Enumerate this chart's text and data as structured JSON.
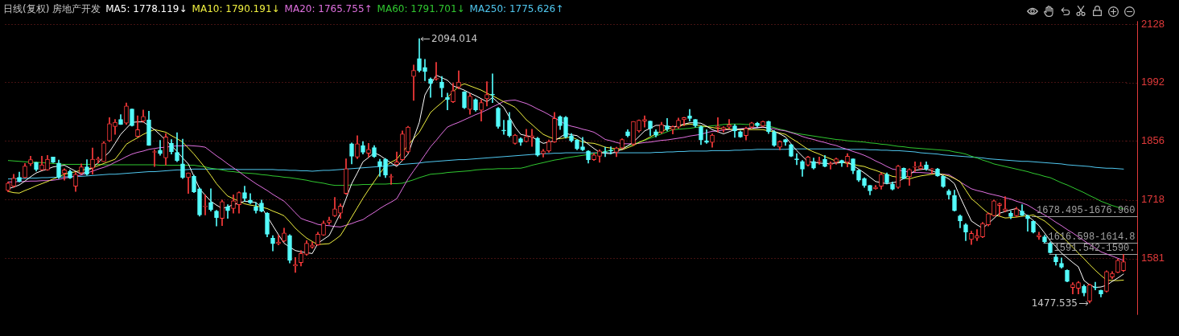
{
  "chart_data": {
    "type": "candlestick",
    "title": "日线(复权) 房地产开发",
    "categories": [
      null,
      null,
      null,
      null,
      null,
      null,
      null,
      null,
      null,
      null,
      null,
      null,
      null,
      null,
      null,
      null,
      null,
      null,
      null,
      null,
      null,
      null,
      null,
      null,
      null,
      null,
      null,
      null,
      null,
      null,
      null,
      null,
      null,
      null,
      null,
      null,
      null,
      null,
      null,
      null,
      null,
      null,
      null,
      null,
      null,
      null,
      null,
      null,
      null,
      null,
      null,
      null,
      null,
      null,
      null,
      null,
      null,
      null,
      null,
      null,
      null,
      null,
      null,
      null,
      null,
      null,
      null,
      null,
      null,
      null,
      null,
      null,
      null,
      null,
      null,
      null,
      null,
      null,
      null,
      null,
      null,
      null,
      null,
      null,
      null,
      null,
      null,
      null,
      null,
      null,
      null,
      null,
      null,
      null,
      null,
      null,
      null,
      null,
      null,
      null,
      null,
      null,
      null,
      null,
      null,
      null,
      null,
      null,
      null,
      null,
      null,
      null,
      null,
      null,
      null,
      null,
      null,
      null,
      null,
      null,
      null,
      null,
      null,
      null,
      null,
      null,
      null,
      null,
      null,
      null,
      null,
      null,
      null,
      null,
      null,
      null,
      null,
      null,
      null,
      null,
      null,
      null,
      null,
      null,
      null,
      null,
      null,
      null,
      null,
      null,
      null,
      null,
      null,
      null,
      null,
      null,
      null,
      null,
      null,
      null,
      null,
      null,
      null,
      null,
      null,
      null,
      null,
      null,
      null,
      null,
      null,
      null,
      null,
      null,
      null,
      null,
      null,
      null,
      null,
      null,
      null,
      null,
      null,
      null,
      null,
      null,
      null,
      null,
      null,
      null,
      null,
      null,
      null,
      null,
      null,
      null,
      null,
      null,
      null
    ],
    "ohlc": [
      [
        1740,
        1760,
        1737,
        1757
      ],
      [
        1750,
        1778,
        1747,
        1769
      ],
      [
        1771,
        1783,
        1760,
        1761
      ],
      [
        1770,
        1803,
        1769,
        1797
      ],
      [
        1802,
        1820,
        1798,
        1812
      ],
      [
        1806,
        1806,
        1785,
        1789
      ],
      [
        1788,
        1820,
        1787,
        1800
      ],
      [
        1788,
        1822,
        1787,
        1813
      ],
      [
        1818,
        1818,
        1805,
        1806
      ],
      [
        1804,
        1811,
        1768,
        1770
      ],
      [
        1780,
        1791,
        1764,
        1788
      ],
      [
        1785,
        1788,
        1768,
        1769
      ],
      [
        1750,
        1782,
        1738,
        1778
      ],
      [
        1781,
        1802,
        1778,
        1795
      ],
      [
        1795,
        1812,
        1776,
        1778
      ],
      [
        1792,
        1839,
        1778,
        1813
      ],
      [
        1812,
        1818,
        1804,
        1814
      ],
      [
        1807,
        1854,
        1807,
        1851
      ],
      [
        1856,
        1910,
        1854,
        1896
      ],
      [
        1889,
        1906,
        1871,
        1899
      ],
      [
        1906,
        1917,
        1894,
        1894
      ],
      [
        1897,
        1944,
        1894,
        1937
      ],
      [
        1930,
        1930,
        1890,
        1891
      ],
      [
        1866,
        1914,
        1865,
        1882
      ],
      [
        1902,
        1928,
        1899,
        1913
      ],
      [
        1905,
        1925,
        1845,
        1845
      ],
      [
        1829,
        1835,
        1796,
        1830
      ],
      [
        1834,
        1857,
        1822,
        1826
      ],
      [
        1816,
        1873,
        1799,
        1865
      ],
      [
        1850,
        1859,
        1825,
        1830
      ],
      [
        1829,
        1875,
        1807,
        1810
      ],
      [
        1802,
        1860,
        1768,
        1770
      ],
      [
        1770,
        1781,
        1733,
        1781
      ],
      [
        1773,
        1776,
        1735,
        1737
      ],
      [
        1744,
        1746,
        1680,
        1683
      ],
      [
        1702,
        1730,
        1683,
        1704
      ],
      [
        1712,
        1744,
        1692,
        1695
      ],
      [
        1692,
        1694,
        1657,
        1677
      ],
      [
        1675,
        1718,
        1658,
        1714
      ],
      [
        1702,
        1707,
        1675,
        1693
      ],
      [
        1698,
        1730,
        1687,
        1716
      ],
      [
        1707,
        1737,
        1687,
        1735
      ],
      [
        1735,
        1750,
        1715,
        1722
      ],
      [
        1718,
        1733,
        1709,
        1711
      ],
      [
        1702,
        1712,
        1687,
        1693
      ],
      [
        1711,
        1718,
        1690,
        1692
      ],
      [
        1687,
        1689,
        1632,
        1638
      ],
      [
        1629,
        1635,
        1599,
        1616
      ],
      [
        1616,
        1636,
        1613,
        1620
      ],
      [
        1622,
        1652,
        1620,
        1641
      ],
      [
        1635,
        1637,
        1571,
        1577
      ],
      [
        1564,
        1584,
        1549,
        1567
      ],
      [
        1572,
        1600,
        1564,
        1593
      ],
      [
        1591,
        1623,
        1589,
        1617
      ],
      [
        1608,
        1620,
        1605,
        1613
      ],
      [
        1613,
        1643,
        1612,
        1638
      ],
      [
        1636,
        1669,
        1635,
        1664
      ],
      [
        1665,
        1678,
        1661,
        1671
      ],
      [
        1681,
        1724,
        1679,
        1697
      ],
      [
        1687,
        1709,
        1675,
        1704
      ],
      [
        1733,
        1814,
        1731,
        1791
      ],
      [
        1849,
        1851,
        1802,
        1820
      ],
      [
        1818,
        1868,
        1814,
        1849
      ],
      [
        1845,
        1854,
        1825,
        1829
      ],
      [
        1827,
        1850,
        1818,
        1836
      ],
      [
        1840,
        1845,
        1817,
        1819
      ],
      [
        1808,
        1813,
        1773,
        1796
      ],
      [
        1813,
        1815,
        1770,
        1776
      ],
      [
        1771,
        1778,
        1754,
        1772
      ],
      [
        1800,
        1830,
        1799,
        1807
      ],
      [
        1812,
        1879,
        1810,
        1872
      ],
      [
        1830,
        1890,
        1828,
        1888
      ],
      [
        2006,
        2033,
        1950,
        2020
      ],
      [
        2048,
        2094.014,
        2016,
        2020
      ],
      [
        2027,
        2046,
        1996,
        2017
      ],
      [
        2000,
        2003,
        1957,
        1990
      ],
      [
        2000,
        2039,
        1997,
        2002
      ],
      [
        1993,
        2006,
        1958,
        1979
      ],
      [
        1957,
        1967,
        1928,
        1952
      ],
      [
        1947,
        1990,
        1945,
        1973
      ],
      [
        1981,
        2019,
        1977,
        1993
      ],
      [
        1970,
        1971,
        1931,
        1933
      ],
      [
        1929,
        1966,
        1918,
        1960
      ],
      [
        1952,
        1954,
        1925,
        1928
      ],
      [
        1927,
        1952,
        1902,
        1945
      ],
      [
        1954,
        1994,
        1937,
        1964
      ],
      [
        1964,
        2012,
        1945,
        1963
      ],
      [
        1932,
        1934,
        1885,
        1889
      ],
      [
        1880,
        1904,
        1871,
        1879
      ],
      [
        1904,
        1922,
        1865,
        1868
      ],
      [
        1850,
        1871,
        1848,
        1869
      ],
      [
        1861,
        1863,
        1845,
        1852
      ],
      [
        1854,
        1883,
        1853,
        1866
      ],
      [
        1864,
        1883,
        1843,
        1868
      ],
      [
        1862,
        1864,
        1820,
        1822
      ],
      [
        1826,
        1836,
        1818,
        1832
      ],
      [
        1832,
        1858,
        1829,
        1854
      ],
      [
        1853,
        1922,
        1852,
        1908
      ],
      [
        1912,
        1914,
        1882,
        1891
      ],
      [
        1911,
        1913,
        1862,
        1865
      ],
      [
        1868,
        1873,
        1853,
        1856
      ],
      [
        1858,
        1859,
        1835,
        1837
      ],
      [
        1842,
        1864,
        1833,
        1835
      ],
      [
        1832,
        1833,
        1804,
        1812
      ],
      [
        1812,
        1827,
        1810,
        1823
      ],
      [
        1820,
        1835,
        1806,
        1832
      ],
      [
        1830,
        1841,
        1819,
        1829
      ],
      [
        1833,
        1842,
        1825,
        1832
      ],
      [
        1829,
        1841,
        1819,
        1839
      ],
      [
        1839,
        1861,
        1837,
        1859
      ],
      [
        1877,
        1882,
        1865,
        1868
      ],
      [
        1848,
        1901,
        1845,
        1901
      ],
      [
        1879,
        1905,
        1876,
        1904
      ],
      [
        1902,
        1914,
        1888,
        1906
      ],
      [
        1902,
        1902,
        1868,
        1885
      ],
      [
        1877,
        1882,
        1865,
        1869
      ],
      [
        1876,
        1899,
        1873,
        1894
      ],
      [
        1891,
        1908,
        1879,
        1883
      ],
      [
        1882,
        1891,
        1872,
        1889
      ],
      [
        1888,
        1909,
        1885,
        1904
      ],
      [
        1905,
        1911,
        1891,
        1910
      ],
      [
        1914,
        1929,
        1902,
        1908
      ],
      [
        1906,
        1906,
        1888,
        1891
      ],
      [
        1889,
        1891,
        1847,
        1858
      ],
      [
        1856,
        1882,
        1850,
        1852
      ],
      [
        1852,
        1872,
        1841,
        1869
      ],
      [
        1888,
        1910,
        1876,
        1890
      ],
      [
        1882,
        1889,
        1876,
        1887
      ],
      [
        1888,
        1906,
        1885,
        1893
      ],
      [
        1891,
        1894,
        1864,
        1879
      ],
      [
        1877,
        1879,
        1864,
        1865
      ],
      [
        1868,
        1888,
        1858,
        1885
      ],
      [
        1888,
        1899,
        1885,
        1898
      ],
      [
        1897,
        1899,
        1888,
        1891
      ],
      [
        1890,
        1902,
        1889,
        1901
      ],
      [
        1901,
        1902,
        1873,
        1877
      ],
      [
        1877,
        1880,
        1843,
        1845
      ],
      [
        1841,
        1856,
        1835,
        1854
      ],
      [
        1859,
        1860,
        1845,
        1853
      ],
      [
        1847,
        1848,
        1819,
        1820
      ],
      [
        1813,
        1826,
        1800,
        1812
      ],
      [
        1808,
        1810,
        1773,
        1790
      ],
      [
        1799,
        1820,
        1797,
        1818
      ],
      [
        1808,
        1816,
        1790,
        1792
      ],
      [
        1807,
        1818,
        1801,
        1808
      ],
      [
        1813,
        1822,
        1795,
        1796
      ],
      [
        1800,
        1807,
        1790,
        1803
      ],
      [
        1806,
        1816,
        1801,
        1814
      ],
      [
        1810,
        1811,
        1796,
        1804
      ],
      [
        1806,
        1826,
        1795,
        1820
      ],
      [
        1814,
        1814,
        1779,
        1786
      ],
      [
        1787,
        1788,
        1761,
        1764
      ],
      [
        1768,
        1770,
        1747,
        1752
      ],
      [
        1752,
        1752,
        1730,
        1739
      ],
      [
        1744,
        1752,
        1743,
        1748
      ],
      [
        1750,
        1781,
        1743,
        1778
      ],
      [
        1778,
        1781,
        1755,
        1758
      ],
      [
        1755,
        1760,
        1741,
        1743
      ],
      [
        1747,
        1799,
        1745,
        1797
      ],
      [
        1792,
        1793,
        1767,
        1768
      ],
      [
        1772,
        1791,
        1752,
        1789
      ],
      [
        1794,
        1807,
        1784,
        1796
      ],
      [
        1791,
        1806,
        1789,
        1797
      ],
      [
        1800,
        1807,
        1787,
        1791
      ],
      [
        1789,
        1792,
        1780,
        1791
      ],
      [
        1790,
        1792,
        1773,
        1774
      ],
      [
        1773,
        1774,
        1747,
        1749
      ],
      [
        1739,
        1742,
        1720,
        1730
      ],
      [
        1728,
        1741,
        1692,
        1693
      ],
      [
        1681,
        1683,
        1653,
        1669
      ],
      [
        1660,
        1663,
        1623,
        1643
      ],
      [
        1626,
        1645,
        1614,
        1640
      ],
      [
        1629,
        1649,
        1623,
        1635
      ],
      [
        1632,
        1666,
        1630,
        1663
      ],
      [
        1660,
        1688,
        1657,
        1686
      ],
      [
        1681,
        1718,
        1680,
        1716
      ],
      [
        1705,
        1711,
        1681,
        1709
      ],
      [
        1693,
        1726,
        1690,
        1697
      ],
      [
        1687,
        1692,
        1674,
        1679
      ],
      [
        1681,
        1701,
        1679,
        1697
      ],
      [
        1692,
        1707,
        1681,
        1682
      ],
      [
        1681,
        1683,
        1645,
        1674
      ],
      [
        1668,
        1669,
        1641,
        1643
      ],
      [
        1632,
        1643,
        1626,
        1636
      ],
      [
        1632,
        1636,
        1618,
        1620
      ],
      [
        1616,
        1620,
        1594,
        1595
      ],
      [
        1585,
        1591,
        1566,
        1574
      ],
      [
        1570,
        1583,
        1559,
        1561
      ],
      [
        1554,
        1555,
        1527,
        1528
      ],
      [
        1514,
        1525,
        1499,
        1521
      ],
      [
        1512,
        1528,
        1499,
        1525
      ],
      [
        1517,
        1520,
        1494,
        1501
      ],
      [
        1482,
        1522,
        1477.535,
        1520
      ],
      [
        1515,
        1526,
        1508,
        1513
      ],
      [
        1507,
        1508,
        1492,
        1499
      ],
      [
        1505,
        1553,
        1503,
        1551
      ],
      [
        1538,
        1551,
        1534,
        1547
      ],
      [
        1549,
        1580,
        1548,
        1577
      ],
      [
        1553,
        1591,
        1551,
        1574
      ]
    ],
    "colors": [
      "#ff3c3c",
      "#ff3c3c",
      "#54fcfc",
      "#ff3c3c",
      "#ff3c3c",
      "#54fcfc",
      "#ff3c3c",
      "#ff3c3c",
      "#54fcfc",
      "#54fcfc",
      "#ff3c3c",
      "#54fcfc",
      "#ff3c3c",
      "#ff3c3c",
      "#54fcfc",
      "#ff3c3c",
      "#ff3c3c",
      "#ff3c3c",
      "#ff3c3c",
      "#ff3c3c",
      "#54fcfc",
      "#ff3c3c",
      "#54fcfc",
      "#ff3c3c",
      "#ff3c3c",
      "#54fcfc",
      "#ff3c3c",
      "#54fcfc",
      "#ff3c3c",
      "#54fcfc",
      "#54fcfc",
      "#54fcfc",
      "#ff3c3c",
      "#54fcfc",
      "#54fcfc",
      "#ff3c3c",
      "#54fcfc",
      "#54fcfc",
      "#ff3c3c",
      "#54fcfc",
      "#ff3c3c",
      "#ff3c3c",
      "#54fcfc",
      "#54fcfc",
      "#54fcfc",
      "#54fcfc",
      "#54fcfc",
      "#54fcfc",
      "#ff3c3c",
      "#ff3c3c",
      "#54fcfc",
      "#ff3c3c",
      "#ff3c3c",
      "#ff3c3c",
      "#ff3c3c",
      "#ff3c3c",
      "#ff3c3c",
      "#ff3c3c",
      "#ff3c3c",
      "#ff3c3c",
      "#ff3c3c",
      "#54fcfc",
      "#ff3c3c",
      "#54fcfc",
      "#ff3c3c",
      "#54fcfc",
      "#54fcfc",
      "#54fcfc",
      "#ff3c3c",
      "#ff3c3c",
      "#ff3c3c",
      "#ff3c3c",
      "#ff3c3c",
      "#54fcfc",
      "#54fcfc",
      "#54fcfc",
      "#ff3c3c",
      "#54fcfc",
      "#54fcfc",
      "#ff3c3c",
      "#ff3c3c",
      "#54fcfc",
      "#ff3c3c",
      "#54fcfc",
      "#ff3c3c",
      "#ff3c3c",
      "#54fcfc",
      "#54fcfc",
      "#54fcfc",
      "#54fcfc",
      "#ff3c3c",
      "#54fcfc",
      "#ff3c3c",
      "#ff3c3c",
      "#54fcfc",
      "#ff3c3c",
      "#ff3c3c",
      "#ff3c3c",
      "#54fcfc",
      "#54fcfc",
      "#54fcfc",
      "#54fcfc",
      "#54fcfc",
      "#54fcfc",
      "#ff3c3c",
      "#ff3c3c",
      "#54fcfc",
      "#54fcfc",
      "#ff3c3c",
      "#ff3c3c",
      "#54fcfc",
      "#ff3c3c",
      "#ff3c3c",
      "#ff3c3c",
      "#54fcfc",
      "#54fcfc",
      "#ff3c3c",
      "#54fcfc",
      "#ff3c3c",
      "#ff3c3c",
      "#ff3c3c",
      "#54fcfc",
      "#54fcfc",
      "#54fcfc",
      "#54fcfc",
      "#ff3c3c",
      "#ff3c3c",
      "#ff3c3c",
      "#ff3c3c",
      "#54fcfc",
      "#54fcfc",
      "#ff3c3c",
      "#ff3c3c",
      "#54fcfc",
      "#ff3c3c",
      "#54fcfc",
      "#54fcfc",
      "#ff3c3c",
      "#54fcfc",
      "#54fcfc",
      "#54fcfc",
      "#54fcfc",
      "#ff3c3c",
      "#54fcfc",
      "#ff3c3c",
      "#54fcfc",
      "#ff3c3c",
      "#ff3c3c",
      "#54fcfc",
      "#ff3c3c",
      "#54fcfc",
      "#54fcfc",
      "#54fcfc",
      "#54fcfc",
      "#ff3c3c",
      "#ff3c3c",
      "#54fcfc",
      "#54fcfc",
      "#ff3c3c",
      "#54fcfc",
      "#ff3c3c",
      "#ff3c3c",
      "#ff3c3c",
      "#54fcfc",
      "#ff3c3c",
      "#54fcfc",
      "#54fcfc",
      "#54fcfc",
      "#54fcfc",
      "#54fcfc",
      "#54fcfc",
      "#ff3c3c",
      "#ff3c3c",
      "#ff3c3c",
      "#ff3c3c",
      "#ff3c3c",
      "#ff3c3c",
      "#ff3c3c",
      "#54fcfc",
      "#ff3c3c",
      "#54fcfc",
      "#54fcfc",
      "#54fcfc",
      "#ff3c3c",
      "#54fcfc",
      "#54fcfc",
      "#54fcfc",
      "#54fcfc",
      "#54fcfc",
      "#ff3c3c",
      "#ff3c3c",
      "#54fcfc",
      "#ff3c3c",
      "#54fcfc",
      "#54fcfc",
      "#ff3c3c",
      "#ff3c3c",
      "#ff3c3c",
      "#ff3c3c"
    ],
    "series": [
      {
        "type": "line",
        "name": "MA5: 1778.119↓",
        "color": "#ffffff",
        "values": [
          1744,
          1748,
          1753,
          1762,
          1772,
          1781,
          1786,
          1790,
          1795,
          1797,
          1799,
          1792,
          1785,
          1778,
          1785,
          1793,
          1805,
          1818,
          1830,
          1850,
          1871,
          1885,
          1899,
          1900,
          1900,
          1891,
          1882,
          1870,
          1857,
          1845,
          1831,
          1816,
          1802,
          1773,
          1744,
          1729,
          1715,
          1706,
          1698,
          1702,
          1707,
          1711,
          1715,
          1714,
          1712,
          1701,
          1680,
          1658,
          1637,
          1617,
          1608,
          1600,
          1597,
          1595,
          1593,
          1617,
          1626,
          1635,
          1661,
          1687,
          1721,
          1756,
          1781,
          1807,
          1817,
          1828,
          1822,
          1813,
          1804,
          1796,
          1810,
          1825,
          1862,
          1899,
          1963,
          1986,
          2009,
          2003,
          1997,
          1984,
          1979,
          1974,
          1967,
          1961,
          1954,
          1947,
          1957,
          1945,
          1934,
          1911,
          1888,
          1871,
          1868,
          1865,
          1857,
          1850,
          1853,
          1856,
          1864,
          1873,
          1870,
          1868,
          1858,
          1848,
          1838,
          1829,
          1827,
          1826,
          1831,
          1836,
          1844,
          1853,
          1866,
          1879,
          1885,
          1892,
          1892,
          1890,
          1888,
          1891,
          1895,
          1898,
          1898,
          1897,
          1890,
          1882,
          1877,
          1872,
          1877,
          1882,
          1883,
          1884,
          1885,
          1886,
          1888,
          1885,
          1878,
          1872,
          1865,
          1849,
          1833,
          1820,
          1807,
          1806,
          1804,
          1803,
          1803,
          1804,
          1805,
          1807,
          1798,
          1790,
          1781,
          1771,
          1761,
          1758,
          1756,
          1758,
          1761,
          1768,
          1776,
          1787,
          1789,
          1790,
          1786,
          1781,
          1774,
          1767,
          1756,
          1725,
          1697,
          1669,
          1660,
          1652,
          1663,
          1675,
          1687,
          1691,
          1695,
          1698,
          1690,
          1681,
          1670,
          1658,
          1641,
          1623,
          1609,
          1594,
          1583,
          1572,
          1562,
          1530,
          1520,
          1514,
          1515,
          1519,
          1528,
          1536,
          1545
        ]
      },
      {
        "type": "line",
        "name": "MA10: 1790.191↓",
        "color": "#f0f040",
        "values": [
          1738,
          1735,
          1734,
          1740,
          1745,
          1751,
          1756,
          1761,
          1767,
          1772,
          1778,
          1781,
          1784,
          1787,
          1790,
          1793,
          1798,
          1803,
          1808,
          1813,
          1830,
          1848,
          1856,
          1863,
          1871,
          1877,
          1882,
          1879,
          1876,
          1868,
          1861,
          1853,
          1839,
          1825,
          1809,
          1793,
          1775,
          1756,
          1741,
          1727,
          1721,
          1715,
          1709,
          1706,
          1704,
          1701,
          1698,
          1692,
          1687,
          1681,
          1667,
          1652,
          1640,
          1629,
          1621,
          1614,
          1615,
          1616,
          1625,
          1635,
          1656,
          1678,
          1700,
          1722,
          1742,
          1761,
          1780,
          1797,
          1806,
          1813,
          1830,
          1845,
          1861,
          1876,
          1899,
          1922,
          1934,
          1945,
          1957,
          1970,
          1983,
          1989,
          1984,
          1979,
          1974,
          1967,
          1961,
          1954,
          1947,
          1941,
          1934,
          1920,
          1905,
          1894,
          1882,
          1871,
          1865,
          1860,
          1861,
          1863,
          1865,
          1859,
          1853,
          1851,
          1850,
          1846,
          1841,
          1839,
          1837,
          1835,
          1840,
          1845,
          1852,
          1858,
          1865,
          1872,
          1878,
          1883,
          1887,
          1890,
          1893,
          1895,
          1893,
          1891,
          1889,
          1887,
          1885,
          1884,
          1883,
          1882,
          1882,
          1882,
          1882,
          1882,
          1882,
          1879,
          1877,
          1874,
          1871,
          1862,
          1854,
          1845,
          1836,
          1830,
          1825,
          1819,
          1814,
          1808,
          1806,
          1803,
          1801,
          1798,
          1796,
          1791,
          1787,
          1782,
          1778,
          1773,
          1771,
          1769,
          1767,
          1771,
          1774,
          1776,
          1778,
          1780,
          1777,
          1774,
          1768,
          1761,
          1741,
          1721,
          1710,
          1698,
          1687,
          1683,
          1680,
          1676,
          1677,
          1678,
          1680,
          1681,
          1683,
          1676,
          1669,
          1658,
          1646,
          1635,
          1621,
          1608,
          1594,
          1581,
          1567,
          1554,
          1542,
          1531,
          1530,
          1530,
          1531
        ]
      },
      {
        "type": "line",
        "name": "MA20: 1765.755↑",
        "color": "#e070e0",
        "values": [
          1760,
          1760,
          1761,
          1761,
          1762,
          1762,
          1763,
          1763,
          1764,
          1766,
          1769,
          1771,
          1774,
          1776,
          1781,
          1785,
          1790,
          1794,
          1799,
          1806,
          1812,
          1819,
          1825,
          1829,
          1832,
          1836,
          1838,
          1840,
          1841,
          1843,
          1844,
          1844,
          1845,
          1844,
          1843,
          1841,
          1831,
          1821,
          1812,
          1802,
          1793,
          1784,
          1774,
          1765,
          1756,
          1748,
          1740,
          1731,
          1723,
          1715,
          1702,
          1688,
          1675,
          1670,
          1666,
          1661,
          1659,
          1658,
          1656,
          1655,
          1659,
          1663,
          1668,
          1672,
          1681,
          1689,
          1698,
          1706,
          1713,
          1721,
          1744,
          1767,
          1786,
          1804,
          1823,
          1842,
          1857,
          1873,
          1888,
          1894,
          1899,
          1905,
          1911,
          1917,
          1922,
          1928,
          1935,
          1941,
          1948,
          1950,
          1951,
          1947,
          1943,
          1937,
          1930,
          1924,
          1917,
          1909,
          1902,
          1894,
          1890,
          1887,
          1883,
          1880,
          1876,
          1868,
          1859,
          1856,
          1852,
          1849,
          1849,
          1849,
          1850,
          1852,
          1853,
          1855,
          1857,
          1858,
          1860,
          1862,
          1864,
          1867,
          1869,
          1871,
          1875,
          1878,
          1879,
          1881,
          1882,
          1883,
          1884,
          1885,
          1886,
          1887,
          1888,
          1886,
          1884,
          1881,
          1879,
          1875,
          1871,
          1866,
          1862,
          1859,
          1855,
          1852,
          1848,
          1845,
          1840,
          1836,
          1831,
          1827,
          1822,
          1816,
          1809,
          1803,
          1796,
          1790,
          1788,
          1785,
          1783,
          1782,
          1782,
          1781,
          1780,
          1779,
          1778,
          1777,
          1769,
          1760,
          1752,
          1744,
          1740,
          1737,
          1733,
          1730,
          1727,
          1723,
          1720,
          1715,
          1711,
          1706,
          1698,
          1690,
          1683,
          1675,
          1666,
          1658,
          1649,
          1641,
          1632,
          1623,
          1614,
          1606,
          1597,
          1592,
          1587,
          1582,
          1577
        ]
      },
      {
        "type": "line",
        "name": "MA60: 1791.701↓",
        "color": "#30c830",
        "values": [
          1810,
          1809,
          1808,
          1807,
          1806,
          1806,
          1805,
          1804,
          1803,
          1802,
          1801,
          1801,
          1801,
          1801,
          1801,
          1801,
          1801,
          1800,
          1800,
          1800,
          1800,
          1800,
          1800,
          1800,
          1800,
          1800,
          1800,
          1799,
          1799,
          1799,
          1799,
          1799,
          1799,
          1799,
          1797,
          1795,
          1792,
          1790,
          1788,
          1785,
          1784,
          1782,
          1781,
          1780,
          1779,
          1777,
          1776,
          1774,
          1773,
          1771,
          1770,
          1768,
          1766,
          1764,
          1761,
          1759,
          1757,
          1754,
          1752,
          1752,
          1752,
          1753,
          1753,
          1754,
          1754,
          1755,
          1755,
          1755,
          1756,
          1756,
          1757,
          1761,
          1765,
          1770,
          1774,
          1778,
          1779,
          1780,
          1782,
          1783,
          1784,
          1785,
          1786,
          1788,
          1789,
          1790,
          1790,
          1791,
          1791,
          1791,
          1792,
          1792,
          1795,
          1799,
          1802,
          1805,
          1808,
          1811,
          1813,
          1816,
          1818,
          1820,
          1822,
          1824,
          1826,
          1828,
          1831,
          1834,
          1836,
          1839,
          1844,
          1848,
          1853,
          1857,
          1862,
          1867,
          1872,
          1877,
          1882,
          1883,
          1884,
          1885,
          1887,
          1888,
          1889,
          1891,
          1892,
          1894,
          1895,
          1895,
          1895,
          1894,
          1894,
          1893,
          1893,
          1890,
          1887,
          1883,
          1880,
          1876,
          1873,
          1871,
          1869,
          1867,
          1865,
          1863,
          1861,
          1859,
          1858,
          1856,
          1855,
          1854,
          1853,
          1851,
          1850,
          1848,
          1847,
          1845,
          1843,
          1842,
          1840,
          1839,
          1838,
          1837,
          1836,
          1835,
          1834,
          1833,
          1830,
          1828,
          1825,
          1820,
          1816,
          1811,
          1807,
          1802,
          1799,
          1796,
          1793,
          1790,
          1787,
          1784,
          1780,
          1777,
          1773,
          1770,
          1764,
          1758,
          1753,
          1747,
          1741,
          1735,
          1728,
          1722,
          1715,
          1710,
          1705,
          1701,
          1697
        ]
      },
      {
        "type": "line",
        "name": "MA250: 1775.626↑",
        "color": "#50c8f0",
        "values": [
          1767,
          1767,
          1768,
          1768,
          1769,
          1769,
          1770,
          1770,
          1771,
          1771,
          1772,
          1772,
          1773,
          1773,
          1774,
          1775,
          1776,
          1777,
          1778,
          1778,
          1779,
          1780,
          1781,
          1782,
          1783,
          1784,
          1784,
          1785,
          1786,
          1787,
          1788,
          1788,
          1789,
          1790,
          1790,
          1790,
          1790,
          1790,
          1790,
          1790,
          1790,
          1789,
          1789,
          1789,
          1789,
          1789,
          1789,
          1789,
          1788,
          1788,
          1787,
          1787,
          1786,
          1786,
          1785,
          1786,
          1787,
          1787,
          1788,
          1789,
          1790,
          1791,
          1792,
          1793,
          1794,
          1795,
          1796,
          1797,
          1798,
          1800,
          1801,
          1802,
          1803,
          1804,
          1806,
          1807,
          1808,
          1809,
          1810,
          1811,
          1812,
          1812,
          1813,
          1814,
          1815,
          1816,
          1817,
          1818,
          1819,
          1820,
          1821,
          1822,
          1823,
          1824,
          1825,
          1826,
          1826,
          1827,
          1827,
          1828,
          1828,
          1828,
          1828,
          1828,
          1828,
          1828,
          1828,
          1828,
          1828,
          1828,
          1828,
          1828,
          1828,
          1828,
          1828,
          1829,
          1829,
          1830,
          1830,
          1831,
          1831,
          1832,
          1832,
          1832,
          1832,
          1833,
          1833,
          1833,
          1833,
          1834,
          1834,
          1835,
          1835,
          1836,
          1836,
          1836,
          1836,
          1836,
          1836,
          1837,
          1837,
          1837,
          1837,
          1837,
          1837,
          1837,
          1837,
          1837,
          1837,
          1836,
          1836,
          1836,
          1836,
          1835,
          1835,
          1834,
          1834,
          1833,
          1833,
          1832,
          1831,
          1830,
          1828,
          1827,
          1826,
          1825,
          1823,
          1822,
          1821,
          1820,
          1819,
          1818,
          1817,
          1816,
          1814,
          1813,
          1812,
          1811,
          1810,
          1809,
          1808,
          1808,
          1807,
          1806,
          1805,
          1804,
          1803,
          1802,
          1800,
          1799,
          1798,
          1797,
          1796,
          1794,
          1793,
          1792,
          1792,
          1791,
          1790
        ]
      }
    ],
    "ylim": [
      1450,
      2135
    ],
    "yticks": [
      1581,
      1718,
      1856,
      1992,
      2128
    ],
    "grid": "y",
    "legend": "top left",
    "tick_labels": "y",
    "marker": "none",
    "line_style": "solid",
    "bands": [
      {
        "axis": "y",
        "from": 1676.96,
        "to": 1678.495,
        "label": "1678.495-1676.960",
        "color": "#a0a0a0"
      },
      {
        "axis": "y",
        "from": 1614.8,
        "to": 1616.598,
        "label": "1616.598-1614.8",
        "color": "#a0a0a0"
      },
      {
        "axis": "y",
        "from": 1590,
        "to": 1591.542,
        "label": "1591.542-1590.",
        "color": "#a0a0a0"
      }
    ],
    "annotations": [
      "2094.014",
      "1477.535"
    ]
  }
}
